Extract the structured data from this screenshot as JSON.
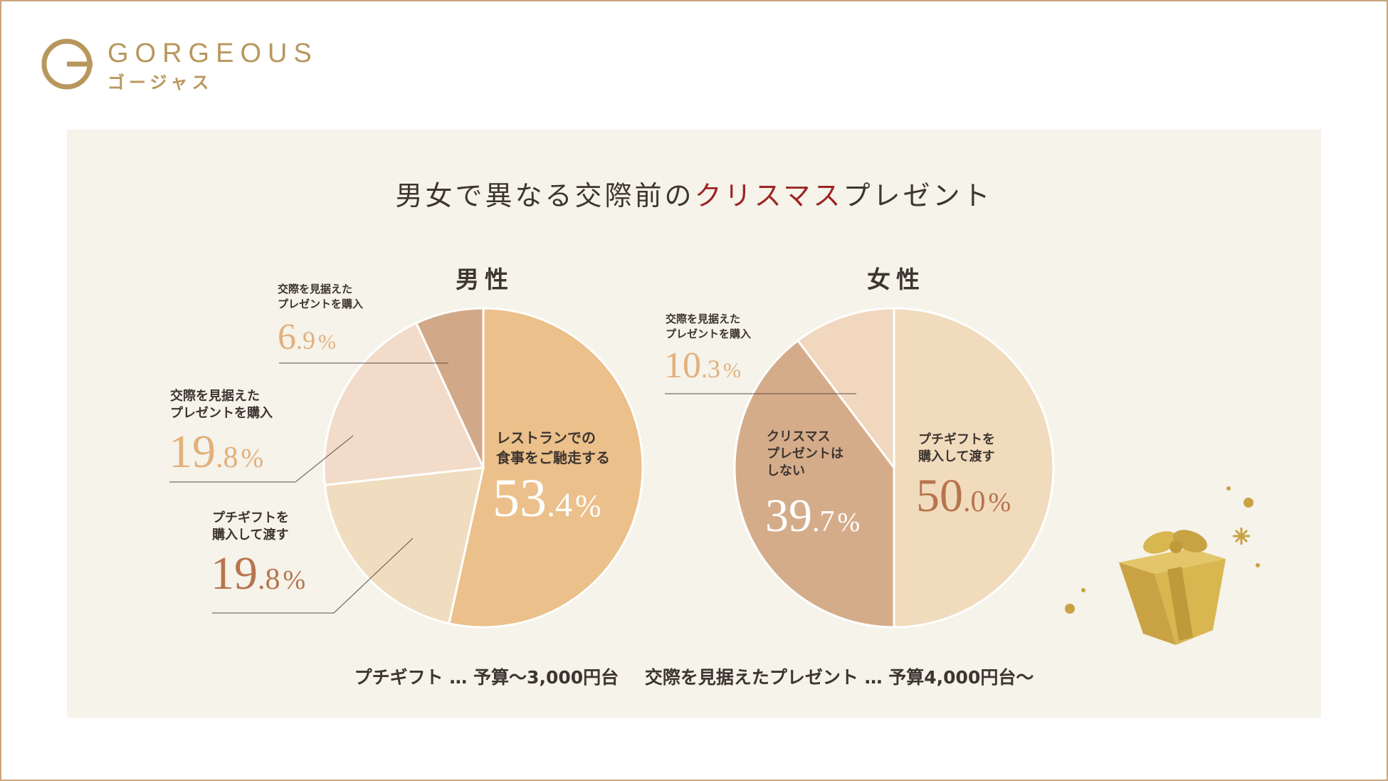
{
  "brand": {
    "name": "GORGEOUS",
    "kana": "ゴージャス",
    "color": "#b8975d"
  },
  "title": {
    "main": "男女で異なる交際前の",
    "accent": "クリスマス",
    "tail": "プレゼント"
  },
  "colors": {
    "accent_red": "#9d2525",
    "text": "#3d3530",
    "panel": "#f5f3ea",
    "border": "#c9a47c"
  },
  "chart_data": [
    {
      "type": "pie",
      "title": "男性",
      "slices": [
        {
          "label": "レストランでの食事をご馳走する",
          "value": 53.4,
          "int": "53",
          "dec": ".4",
          "color": "#ebc08a",
          "pct_color": "#ffffff"
        },
        {
          "label": "プチギフトを購入して渡す",
          "value": 19.8,
          "int": "19",
          "dec": ".8",
          "color": "#f0ddbf",
          "pct_color": "#b7744f"
        },
        {
          "label": "交際を見据えたプレゼントを購入",
          "value": 19.8,
          "int": "19",
          "dec": ".8",
          "color": "#f2dbc9",
          "pct_color": "#e3b07c"
        },
        {
          "label": "交際を見据えたプレゼントを購入",
          "value": 6.9,
          "int": "6",
          "dec": ".9",
          "color": "#d1a989",
          "pct_color": "#e3b07c"
        }
      ]
    },
    {
      "type": "pie",
      "title": "女性",
      "slices": [
        {
          "label": "プチギフトを購入して渡す",
          "value": 50.0,
          "int": "50",
          "dec": ".0",
          "color": "#f1dbbd",
          "pct_color": "#b7744f"
        },
        {
          "label": "クリスマスプレゼントはしない",
          "value": 39.7,
          "int": "39",
          "dec": ".7",
          "color": "#d5ac8a",
          "pct_color": "#ffffff"
        },
        {
          "label": "交際を見据えたプレゼントを購入",
          "value": 10.3,
          "int": "10",
          "dec": ".3",
          "color": "#f0d7bd",
          "pct_color": "#e3b07c"
        }
      ]
    }
  ],
  "labels": {
    "male_restaurant": [
      "レストランでの",
      "食事をご馳走する"
    ],
    "male_petit": [
      "プチギフトを",
      "購入して渡す"
    ],
    "male_present_a": [
      "交際を見据えた",
      "プレゼントを購入"
    ],
    "male_present_b": [
      "交際を見据えた",
      "プレゼントを購入"
    ],
    "female_petit": [
      "プチギフトを",
      "購入して渡す"
    ],
    "female_none": [
      "クリスマス",
      "プレゼントは",
      "しない"
    ],
    "female_present": [
      "交際を見据えた",
      "プレゼントを購入"
    ]
  },
  "percent_sign": "%",
  "footer": {
    "item1": "プチギフト … 予算〜3,000円台",
    "item2": "交際を見据えたプレゼント … 予算4,000円台〜"
  }
}
